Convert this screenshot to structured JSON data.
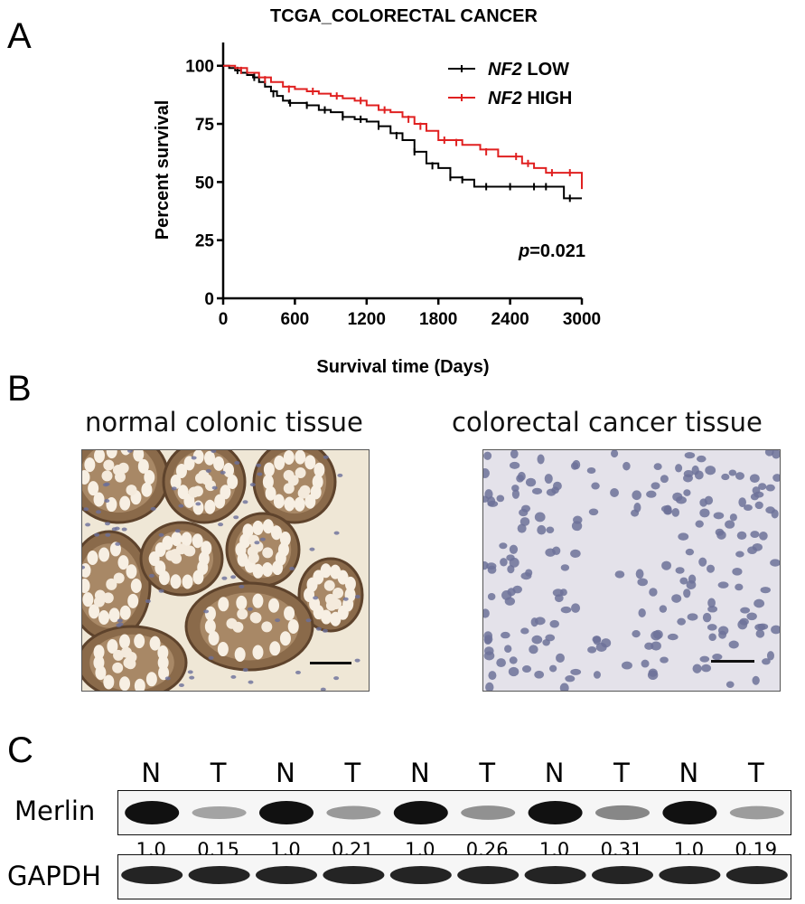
{
  "panels": {
    "a": "A",
    "b": "B",
    "c": "C"
  },
  "chart_data": {
    "type": "line",
    "title": "TCGA_COLORECTAL CANCER",
    "xlabel": "Survival time (Days)",
    "ylabel": "Percent survival",
    "xlim": [
      0,
      3000
    ],
    "ylim": [
      0,
      110
    ],
    "xticks": [
      0,
      600,
      1200,
      1800,
      2400,
      3000
    ],
    "yticks": [
      0,
      25,
      50,
      75,
      100
    ],
    "legend_position": "top-right",
    "annotation": "p=0.021",
    "series": [
      {
        "name": "NF2 LOW",
        "name_italic": "NF2",
        "name_rest": " LOW",
        "color": "#000000",
        "points": [
          [
            0,
            100
          ],
          [
            50,
            99
          ],
          [
            100,
            98
          ],
          [
            150,
            97
          ],
          [
            200,
            96
          ],
          [
            250,
            95
          ],
          [
            300,
            93
          ],
          [
            350,
            91
          ],
          [
            400,
            89
          ],
          [
            450,
            87
          ],
          [
            500,
            85
          ],
          [
            550,
            84
          ],
          [
            600,
            84
          ],
          [
            700,
            83
          ],
          [
            800,
            81
          ],
          [
            900,
            80
          ],
          [
            1000,
            78
          ],
          [
            1100,
            77
          ],
          [
            1200,
            76
          ],
          [
            1300,
            74
          ],
          [
            1400,
            71
          ],
          [
            1500,
            68
          ],
          [
            1600,
            63
          ],
          [
            1700,
            58
          ],
          [
            1800,
            56
          ],
          [
            1900,
            52
          ],
          [
            2000,
            51
          ],
          [
            2100,
            48
          ],
          [
            2500,
            48
          ],
          [
            2800,
            48
          ],
          [
            2850,
            43
          ],
          [
            3000,
            43
          ]
        ],
        "censors": [
          [
            120,
            98
          ],
          [
            260,
            95
          ],
          [
            420,
            88
          ],
          [
            560,
            84
          ],
          [
            700,
            83
          ],
          [
            850,
            81
          ],
          [
            1000,
            78
          ],
          [
            1150,
            77
          ],
          [
            1300,
            74
          ],
          [
            1450,
            70
          ],
          [
            1600,
            63
          ],
          [
            1750,
            57
          ],
          [
            1900,
            52
          ],
          [
            2000,
            51
          ],
          [
            2200,
            48
          ],
          [
            2400,
            48
          ],
          [
            2600,
            48
          ],
          [
            2700,
            48
          ],
          [
            2900,
            43
          ]
        ]
      },
      {
        "name": "NF2 HIGH",
        "name_italic": "NF2",
        "name_rest": " HIGH",
        "color": "#e02020",
        "points": [
          [
            0,
            100
          ],
          [
            100,
            99
          ],
          [
            200,
            97
          ],
          [
            300,
            95
          ],
          [
            400,
            93
          ],
          [
            500,
            91
          ],
          [
            600,
            90
          ],
          [
            700,
            89
          ],
          [
            800,
            88
          ],
          [
            900,
            87
          ],
          [
            1000,
            86
          ],
          [
            1100,
            85
          ],
          [
            1200,
            83
          ],
          [
            1300,
            81
          ],
          [
            1400,
            80
          ],
          [
            1500,
            78
          ],
          [
            1600,
            75
          ],
          [
            1700,
            72
          ],
          [
            1800,
            68
          ],
          [
            1900,
            68
          ],
          [
            2000,
            66
          ],
          [
            2150,
            64
          ],
          [
            2300,
            61
          ],
          [
            2400,
            61
          ],
          [
            2500,
            58
          ],
          [
            2600,
            56
          ],
          [
            2700,
            54
          ],
          [
            2900,
            54
          ],
          [
            3000,
            47
          ]
        ],
        "censors": [
          [
            150,
            98
          ],
          [
            350,
            94
          ],
          [
            550,
            90
          ],
          [
            750,
            89
          ],
          [
            950,
            87
          ],
          [
            1150,
            85
          ],
          [
            1350,
            81
          ],
          [
            1550,
            77
          ],
          [
            1650,
            74
          ],
          [
            1850,
            68
          ],
          [
            1950,
            67
          ],
          [
            2200,
            63
          ],
          [
            2450,
            61
          ],
          [
            2550,
            58
          ],
          [
            2750,
            54
          ],
          [
            2900,
            54
          ]
        ]
      }
    ]
  },
  "tissues": {
    "normal_title": "normal colonic tissue",
    "cancer_title": "colorectal cancer tissue"
  },
  "blot": {
    "lanes": [
      "N",
      "T",
      "N",
      "T",
      "N",
      "T",
      "N",
      "T",
      "N",
      "T"
    ],
    "merlin_label": "Merlin",
    "gapdh_label": "GAPDH",
    "quant": [
      "1.0",
      "0.15",
      "1.0",
      "0.21",
      "1.0",
      "0.26",
      "1.0",
      "0.31",
      "1.0",
      "0.19"
    ],
    "merlin_intensity": [
      1.0,
      0.15,
      1.0,
      0.21,
      1.0,
      0.26,
      1.0,
      0.31,
      1.0,
      0.19
    ]
  }
}
